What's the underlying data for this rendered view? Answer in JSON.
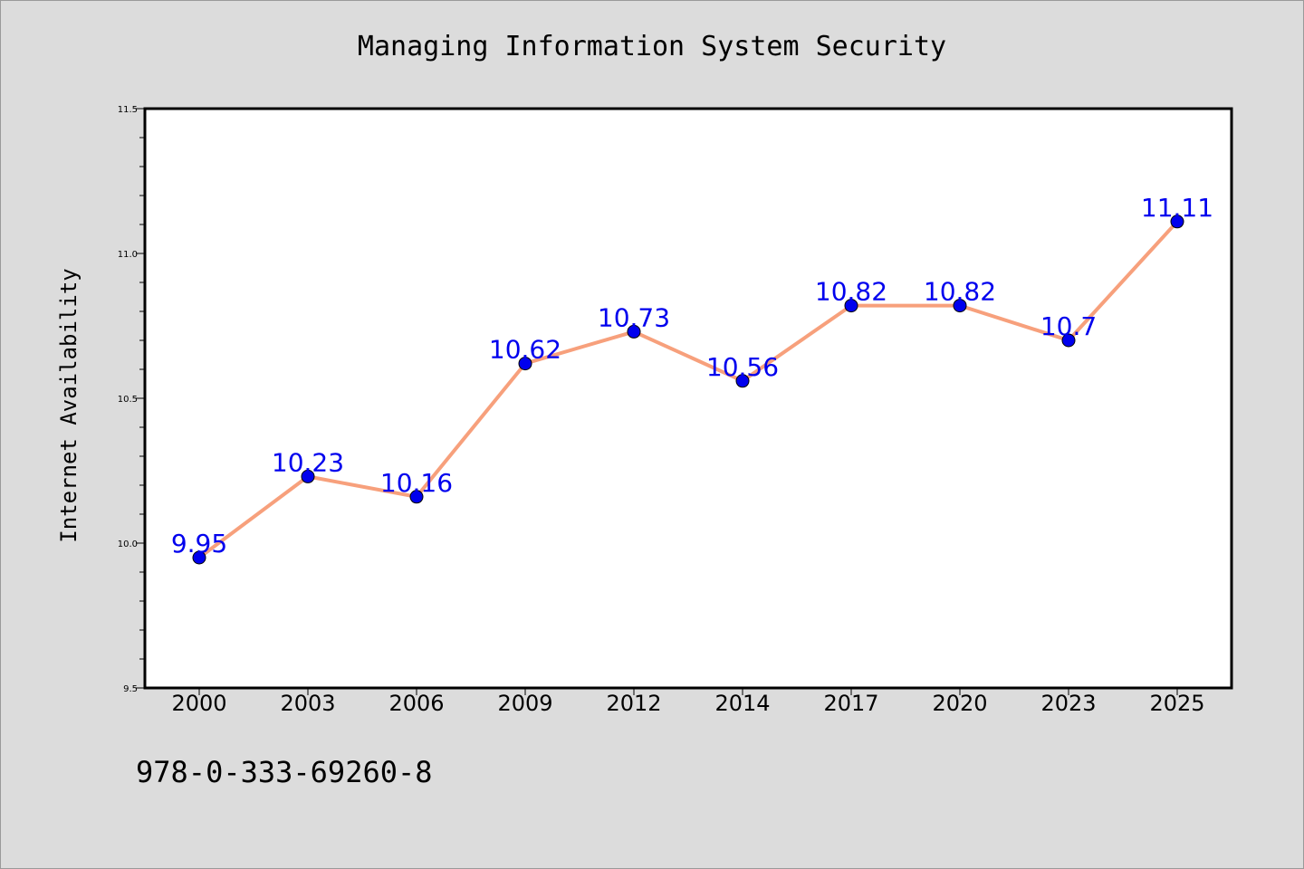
{
  "chart_data": {
    "type": "line",
    "title": "Managing Information System Security",
    "xlabel": "",
    "ylabel": "Internet Availability",
    "categories": [
      "2000",
      "2003",
      "2006",
      "2009",
      "2012",
      "2014",
      "2017",
      "2020",
      "2023",
      "2025"
    ],
    "series": [
      {
        "values": [
          9.95,
          10.23,
          10.16,
          10.62,
          10.73,
          10.56,
          10.82,
          10.82,
          10.7,
          11.11
        ],
        "data_labels": [
          "9.95",
          "10.23",
          "10.16",
          "10.62",
          "10.73",
          "10.56",
          "10.82",
          "10.82",
          "10.7",
          "11.11"
        ],
        "line_color": "#f7a07c",
        "marker_color": "#0000ee",
        "label_color": "#0000ee"
      }
    ],
    "ylim": [
      9.5,
      11.5
    ],
    "yticks": [
      "9.5",
      "10.0",
      "10.5",
      "11.0",
      "11.5"
    ],
    "grid": false,
    "legend": "none"
  },
  "footer": {
    "isbn": "978-0-333-69260-8"
  },
  "colors": {
    "background": "#dcdcdc",
    "plot_background": "#ffffff"
  }
}
